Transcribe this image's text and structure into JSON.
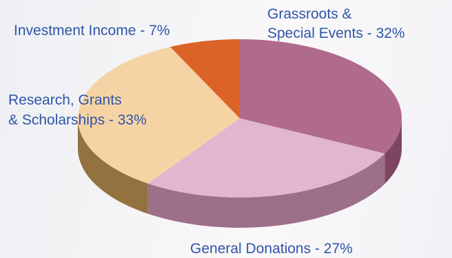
{
  "chart_data": {
    "type": "pie",
    "style": "3d",
    "title": "",
    "slices": [
      {
        "label_lines": [
          "Grassroots &",
          "Special Events - 32%"
        ],
        "value": 32,
        "top_color": "#b06a8c",
        "side_color": "#7d4562"
      },
      {
        "label_lines": [
          "General Donations - 27%"
        ],
        "value": 27,
        "top_color": "#e2b6ce",
        "side_color": "#9e6f88"
      },
      {
        "label_lines": [
          "Research, Grants",
          "& Scholarships - 33%"
        ],
        "value": 33,
        "top_color": "#f6d3a4",
        "side_color": "#947240"
      },
      {
        "label_lines": [
          "Investment Income - 7%"
        ],
        "value": 7,
        "top_color": "#dc6328",
        "side_color": "#9a4519"
      }
    ]
  },
  "colors": {
    "label_text": "#2f55a8"
  }
}
